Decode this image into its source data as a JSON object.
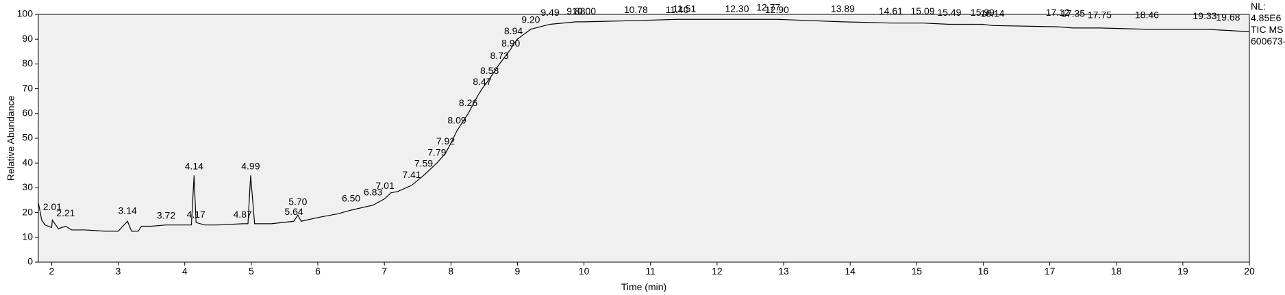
{
  "chart_data": {
    "type": "line",
    "x_label": "Time (min)",
    "y_label": "Relative Abundance",
    "info": [
      "NL:",
      "4.85E6",
      "TIC  MS",
      "600673-"
    ],
    "xlim": [
      1.8,
      20
    ],
    "ylim": [
      0,
      100
    ],
    "xticks": [
      2,
      3,
      4,
      5,
      6,
      7,
      8,
      9,
      10,
      11,
      12,
      13,
      14,
      15,
      16,
      17,
      18,
      19,
      20
    ],
    "yticks": [
      0,
      10,
      20,
      30,
      40,
      50,
      60,
      70,
      80,
      90,
      100
    ],
    "series": [
      {
        "color": "#000000",
        "x": [
          1.8,
          1.85,
          1.9,
          2.0,
          2.01,
          2.1,
          2.21,
          2.3,
          2.5,
          2.8,
          3.0,
          3.14,
          3.2,
          3.3,
          3.35,
          3.5,
          3.72,
          4.0,
          4.1,
          4.14,
          4.17,
          4.3,
          4.5,
          4.87,
          4.95,
          4.99,
          5.05,
          5.3,
          5.64,
          5.7,
          5.75,
          6.0,
          6.3,
          6.5,
          6.83,
          7.0,
          7.1,
          7.2,
          7.41,
          7.59,
          7.79,
          7.92,
          8.0,
          8.09,
          8.26,
          8.4,
          8.47,
          8.58,
          8.73,
          8.9,
          8.94,
          9.0,
          9.2,
          9.49,
          9.88,
          10.0,
          10.78,
          11.4,
          11.51,
          12.3,
          12.77,
          12.9,
          13.89,
          14.61,
          15.09,
          15.49,
          15.99,
          16.14,
          17.12,
          17.35,
          17.75,
          18.46,
          19.33,
          19.68,
          20
        ],
        "values": [
          24,
          17,
          15,
          14,
          17,
          13.5,
          14.5,
          13,
          13,
          12.5,
          12.5,
          16.5,
          12.5,
          12.5,
          14.5,
          14.5,
          15,
          15,
          15,
          35,
          16,
          15,
          15,
          15.5,
          15.5,
          35,
          15.5,
          15.5,
          16.5,
          19,
          16.5,
          18,
          19.5,
          21,
          23,
          25.5,
          28,
          28.5,
          31,
          35,
          40,
          44,
          48,
          53,
          60,
          67,
          70,
          74,
          80,
          86,
          88,
          90,
          94,
          96,
          97,
          97,
          97.5,
          98,
          98,
          98,
          98,
          98,
          97,
          96.5,
          96.5,
          96,
          96,
          95.5,
          95,
          94.5,
          94.5,
          94,
          94,
          93.5,
          93
        ]
      }
    ],
    "peaks": [
      {
        "x": 2.01,
        "y": 21
      },
      {
        "x": 2.21,
        "y": 18.5
      },
      {
        "x": 3.14,
        "y": 19.5
      },
      {
        "x": 3.72,
        "y": 17.5
      },
      {
        "x": 4.14,
        "y": 37.5
      },
      {
        "x": 4.17,
        "y": 18
      },
      {
        "x": 4.87,
        "y": 18
      },
      {
        "x": 4.99,
        "y": 37.5
      },
      {
        "x": 5.64,
        "y": 19
      },
      {
        "x": {
          "value": 5.7,
          "label": "5.70"
        },
        "y": 23
      },
      {
        "x": {
          "value": 6.5,
          "label": "6.50"
        },
        "y": 24.5
      },
      {
        "x": 6.83,
        "y": 27
      },
      {
        "x": 7.01,
        "y": 29.5
      },
      {
        "x": 7.41,
        "y": 34
      },
      {
        "x": 7.59,
        "y": 38.5
      },
      {
        "x": 7.79,
        "y": 43
      },
      {
        "x": 7.92,
        "y": 47.5
      },
      {
        "x": 8.09,
        "y": 56
      },
      {
        "x": 8.26,
        "y": 63
      },
      {
        "x": 8.47,
        "y": 71.5
      },
      {
        "x": 8.58,
        "y": 76
      },
      {
        "x": 8.73,
        "y": 82
      },
      {
        "x": {
          "value": 8.9,
          "label": "8.90"
        },
        "y": 87
      },
      {
        "x": 8.94,
        "y": 92
      },
      {
        "x": {
          "value": 9.2,
          "label": "9.20"
        },
        "y": 96.5
      },
      {
        "x": 9.49,
        "y": 99.5
      },
      {
        "x": 9.88,
        "y": 100
      },
      {
        "x": {
          "value": 10,
          "label": "10.00"
        },
        "y": 100
      },
      {
        "x": 10.78,
        "y": 100.5
      },
      {
        "x": {
          "value": 11.4,
          "label": "11.40"
        },
        "y": 100.5
      },
      {
        "x": 11.51,
        "y": 101
      },
      {
        "x": {
          "value": 12.3,
          "label": "12.30"
        },
        "y": 101
      },
      {
        "x": 12.77,
        "y": 101.5
      },
      {
        "x": {
          "value": 12.9,
          "label": "12.90"
        },
        "y": 100.5
      },
      {
        "x": 13.89,
        "y": 101
      },
      {
        "x": 14.61,
        "y": 100
      },
      {
        "x": 15.09,
        "y": 100
      },
      {
        "x": 15.49,
        "y": 99.5
      },
      {
        "x": 15.99,
        "y": 99.5
      },
      {
        "x": 16.14,
        "y": 99
      },
      {
        "x": 17.12,
        "y": 99.5
      },
      {
        "x": 17.35,
        "y": 99
      },
      {
        "x": 17.75,
        "y": 98.5
      },
      {
        "x": 18.46,
        "y": 98.5
      },
      {
        "x": 19.33,
        "y": 98
      },
      {
        "x": 19.68,
        "y": 97.5
      }
    ]
  }
}
